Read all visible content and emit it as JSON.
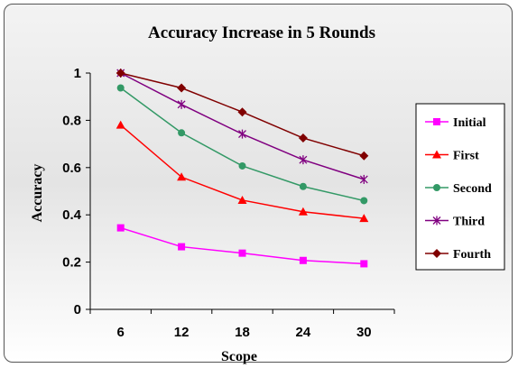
{
  "chart_data": {
    "type": "line",
    "title": "Accuracy Increase in 5 Rounds",
    "xlabel": "Scope",
    "ylabel": "Accuracy",
    "x": [
      6,
      12,
      18,
      24,
      30
    ],
    "x_tick_labels": [
      "6",
      "12",
      "18",
      "24",
      "30"
    ],
    "ylim": [
      0,
      1
    ],
    "y_ticks": [
      0,
      0.2,
      0.4,
      0.6,
      0.8,
      1
    ],
    "y_tick_labels": [
      "0",
      "0.2",
      "0.4",
      "0.6",
      "0.8",
      "1"
    ],
    "grid": false,
    "legend_position": "right",
    "series": [
      {
        "name": "Initial",
        "values": [
          0.345,
          0.265,
          0.238,
          0.207,
          0.193
        ],
        "color": "#ff00ff",
        "marker": "square"
      },
      {
        "name": "First",
        "values": [
          0.78,
          0.56,
          0.462,
          0.413,
          0.385
        ],
        "color": "#ff0000",
        "marker": "triangle"
      },
      {
        "name": "Second",
        "values": [
          0.937,
          0.747,
          0.607,
          0.52,
          0.46
        ],
        "color": "#339966",
        "marker": "circle"
      },
      {
        "name": "Third",
        "values": [
          1.0,
          0.867,
          0.742,
          0.633,
          0.55
        ],
        "color": "#800080",
        "marker": "asterisk"
      },
      {
        "name": "Fourth",
        "values": [
          1.0,
          0.937,
          0.835,
          0.725,
          0.65
        ],
        "color": "#800000",
        "marker": "diamond"
      }
    ]
  }
}
